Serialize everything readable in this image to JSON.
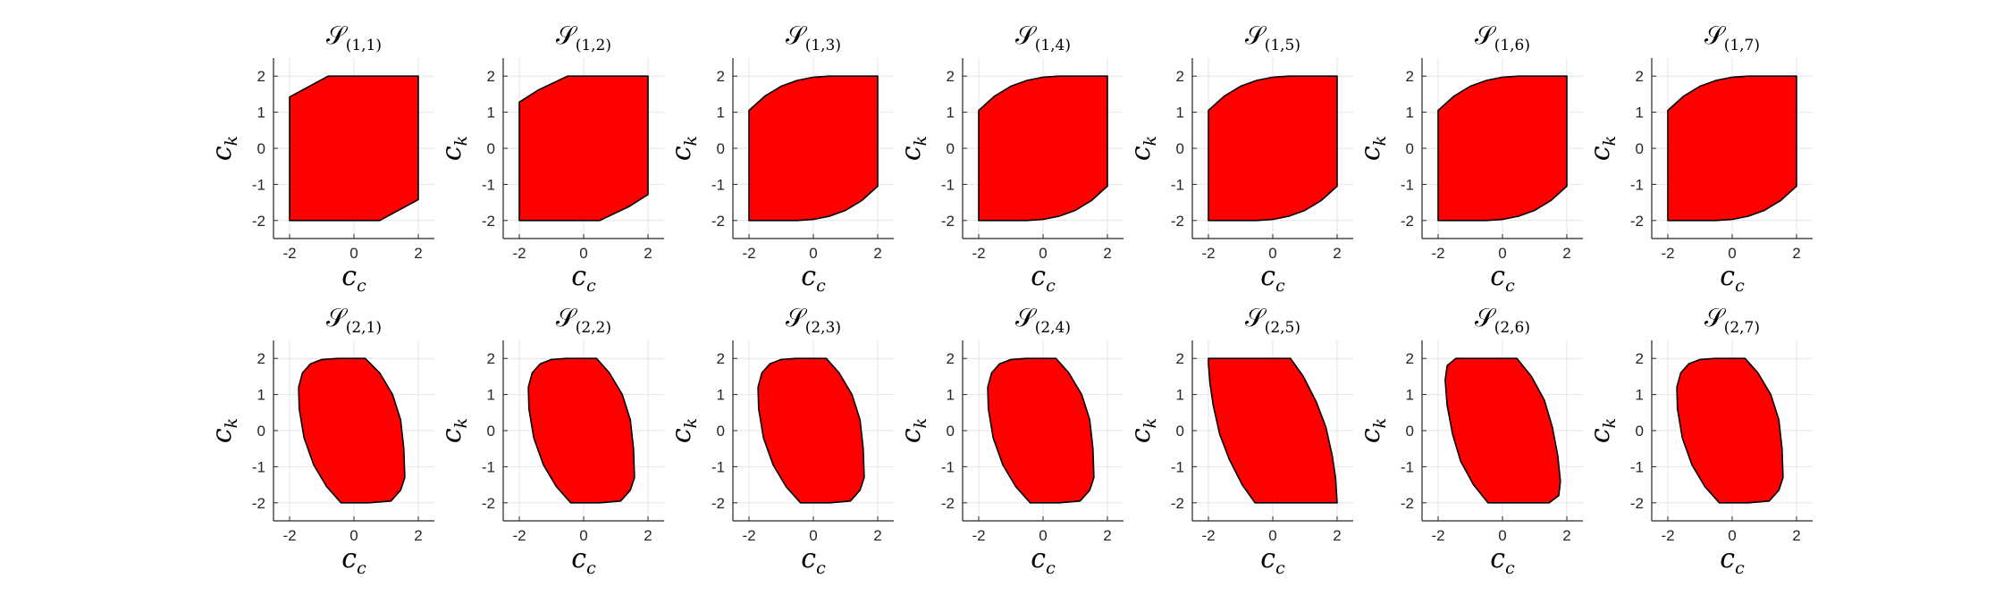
{
  "colors": {
    "fill": "#ff0000",
    "edge": "#000000",
    "grid": "#e6e6e6",
    "axis": "#262626"
  },
  "chart_data": {
    "type": "area",
    "layout": {
      "rows": 2,
      "cols": 7
    },
    "xlim": [
      -2.5,
      2.5
    ],
    "ylim": [
      -2.5,
      2.5
    ],
    "xticks": [
      "-2",
      "0",
      "2"
    ],
    "yticks": [
      "2",
      "1",
      "0",
      "-1",
      "-2"
    ],
    "xtick_values": [
      -2,
      0,
      2
    ],
    "ytick_values": [
      2,
      1,
      0,
      -1,
      -2
    ],
    "grid": true,
    "xlabel": {
      "base": "c",
      "sub": "c"
    },
    "ylabel": {
      "base": "c",
      "sub": "k"
    },
    "panels": [
      {
        "title_sub": "(1,1)",
        "polygon": [
          [
            -2,
            -2
          ],
          [
            -2,
            1.42
          ],
          [
            -0.8,
            2
          ],
          [
            2,
            2
          ],
          [
            2,
            -1.42
          ],
          [
            0.8,
            -2
          ]
        ]
      },
      {
        "title_sub": "(1,2)",
        "polygon": [
          [
            -2,
            -2
          ],
          [
            -2,
            1.28
          ],
          [
            -1.4,
            1.62
          ],
          [
            -0.5,
            2
          ],
          [
            2,
            2
          ],
          [
            2,
            -1.28
          ],
          [
            1.4,
            -1.62
          ],
          [
            0.5,
            -2
          ]
        ]
      },
      {
        "title_sub": "(1,3)",
        "polygon": [
          [
            -2,
            -2
          ],
          [
            -2,
            1.05
          ],
          [
            -1.5,
            1.45
          ],
          [
            -1,
            1.72
          ],
          [
            -0.5,
            1.88
          ],
          [
            0,
            1.97
          ],
          [
            0.5,
            2
          ],
          [
            2,
            2
          ],
          [
            2,
            -1.05
          ],
          [
            1.5,
            -1.45
          ],
          [
            1,
            -1.72
          ],
          [
            0.5,
            -1.88
          ],
          [
            0,
            -1.97
          ],
          [
            -0.5,
            -2
          ]
        ]
      },
      {
        "title_sub": "(1,4)",
        "polygon": [
          [
            -2,
            -2
          ],
          [
            -2,
            1.05
          ],
          [
            -1.5,
            1.45
          ],
          [
            -1,
            1.72
          ],
          [
            -0.5,
            1.88
          ],
          [
            0,
            1.97
          ],
          [
            0.5,
            2
          ],
          [
            2,
            2
          ],
          [
            2,
            -1.05
          ],
          [
            1.5,
            -1.45
          ],
          [
            1,
            -1.72
          ],
          [
            0.5,
            -1.88
          ],
          [
            0,
            -1.97
          ],
          [
            -0.5,
            -2
          ]
        ]
      },
      {
        "title_sub": "(1,5)",
        "polygon": [
          [
            -2,
            -2
          ],
          [
            -2,
            1.05
          ],
          [
            -1.5,
            1.45
          ],
          [
            -1,
            1.72
          ],
          [
            -0.5,
            1.88
          ],
          [
            0,
            1.97
          ],
          [
            0.5,
            2
          ],
          [
            2,
            2
          ],
          [
            2,
            -1.05
          ],
          [
            1.5,
            -1.45
          ],
          [
            1,
            -1.72
          ],
          [
            0.5,
            -1.88
          ],
          [
            0,
            -1.97
          ],
          [
            -0.5,
            -2
          ]
        ]
      },
      {
        "title_sub": "(1,6)",
        "polygon": [
          [
            -2,
            -2
          ],
          [
            -2,
            1.05
          ],
          [
            -1.5,
            1.45
          ],
          [
            -1,
            1.72
          ],
          [
            -0.5,
            1.88
          ],
          [
            0,
            1.97
          ],
          [
            0.5,
            2
          ],
          [
            2,
            2
          ],
          [
            2,
            -1.05
          ],
          [
            1.5,
            -1.45
          ],
          [
            1,
            -1.72
          ],
          [
            0.5,
            -1.88
          ],
          [
            0,
            -1.97
          ],
          [
            -0.5,
            -2
          ]
        ]
      },
      {
        "title_sub": "(1,7)",
        "polygon": [
          [
            -2,
            -2
          ],
          [
            -2,
            1.05
          ],
          [
            -1.5,
            1.45
          ],
          [
            -1,
            1.72
          ],
          [
            -0.5,
            1.88
          ],
          [
            0,
            1.97
          ],
          [
            0.5,
            2
          ],
          [
            2,
            2
          ],
          [
            2,
            -1.05
          ],
          [
            1.5,
            -1.45
          ],
          [
            1,
            -1.72
          ],
          [
            0.5,
            -1.88
          ],
          [
            0,
            -1.97
          ],
          [
            -0.5,
            -2
          ]
        ]
      },
      {
        "title_sub": "(2,1)",
        "polygon": [
          [
            -0.5,
            2
          ],
          [
            0.35,
            2
          ],
          [
            0.8,
            1.6
          ],
          [
            1.2,
            1
          ],
          [
            1.45,
            0.3
          ],
          [
            1.55,
            -0.5
          ],
          [
            1.58,
            -1.3
          ],
          [
            1.45,
            -1.65
          ],
          [
            1.15,
            -1.95
          ],
          [
            0.45,
            -2
          ],
          [
            -0.4,
            -2
          ],
          [
            -0.85,
            -1.55
          ],
          [
            -1.25,
            -0.95
          ],
          [
            -1.55,
            -0.2
          ],
          [
            -1.7,
            0.6
          ],
          [
            -1.72,
            1.2
          ],
          [
            -1.6,
            1.6
          ],
          [
            -1.35,
            1.85
          ],
          [
            -1,
            1.97
          ]
        ]
      },
      {
        "title_sub": "(2,2)",
        "polygon": [
          [
            -0.55,
            2
          ],
          [
            0.4,
            2
          ],
          [
            0.8,
            1.6
          ],
          [
            1.2,
            1
          ],
          [
            1.45,
            0.3
          ],
          [
            1.55,
            -0.5
          ],
          [
            1.58,
            -1.3
          ],
          [
            1.45,
            -1.65
          ],
          [
            1.15,
            -1.95
          ],
          [
            0.5,
            -2
          ],
          [
            -0.4,
            -2
          ],
          [
            -0.85,
            -1.55
          ],
          [
            -1.25,
            -0.95
          ],
          [
            -1.55,
            -0.2
          ],
          [
            -1.7,
            0.6
          ],
          [
            -1.72,
            1.2
          ],
          [
            -1.6,
            1.6
          ],
          [
            -1.35,
            1.85
          ],
          [
            -1,
            1.97
          ]
        ]
      },
      {
        "title_sub": "(2,3)",
        "polygon": [
          [
            -0.55,
            2
          ],
          [
            0.4,
            2
          ],
          [
            0.8,
            1.6
          ],
          [
            1.2,
            1
          ],
          [
            1.45,
            0.3
          ],
          [
            1.55,
            -0.5
          ],
          [
            1.58,
            -1.3
          ],
          [
            1.45,
            -1.65
          ],
          [
            1.15,
            -1.95
          ],
          [
            0.5,
            -2
          ],
          [
            -0.4,
            -2
          ],
          [
            -0.85,
            -1.55
          ],
          [
            -1.25,
            -0.95
          ],
          [
            -1.55,
            -0.2
          ],
          [
            -1.7,
            0.6
          ],
          [
            -1.72,
            1.2
          ],
          [
            -1.6,
            1.6
          ],
          [
            -1.35,
            1.85
          ],
          [
            -1,
            1.97
          ]
        ]
      },
      {
        "title_sub": "(2,4)",
        "polygon": [
          [
            -0.55,
            2
          ],
          [
            0.4,
            2
          ],
          [
            0.8,
            1.6
          ],
          [
            1.2,
            1
          ],
          [
            1.45,
            0.3
          ],
          [
            1.55,
            -0.5
          ],
          [
            1.58,
            -1.3
          ],
          [
            1.45,
            -1.65
          ],
          [
            1.15,
            -1.95
          ],
          [
            0.5,
            -2
          ],
          [
            -0.4,
            -2
          ],
          [
            -0.85,
            -1.55
          ],
          [
            -1.25,
            -0.95
          ],
          [
            -1.55,
            -0.2
          ],
          [
            -1.7,
            0.6
          ],
          [
            -1.72,
            1.2
          ],
          [
            -1.6,
            1.6
          ],
          [
            -1.35,
            1.85
          ],
          [
            -1,
            1.97
          ]
        ]
      },
      {
        "title_sub": "(2,5)",
        "polygon": [
          [
            -2,
            2
          ],
          [
            0.55,
            2
          ],
          [
            0.95,
            1.5
          ],
          [
            1.35,
            0.8
          ],
          [
            1.65,
            0.1
          ],
          [
            1.85,
            -0.7
          ],
          [
            1.95,
            -1.3
          ],
          [
            2,
            -2
          ],
          [
            -0.55,
            -2
          ],
          [
            -0.95,
            -1.5
          ],
          [
            -1.35,
            -0.8
          ],
          [
            -1.65,
            -0.1
          ],
          [
            -1.85,
            0.7
          ],
          [
            -1.95,
            1.3
          ],
          [
            -2,
            1.85
          ]
        ]
      },
      {
        "title_sub": "(2,6)",
        "polygon": [
          [
            -1.45,
            2
          ],
          [
            0.45,
            2
          ],
          [
            0.9,
            1.5
          ],
          [
            1.3,
            0.85
          ],
          [
            1.55,
            0.1
          ],
          [
            1.72,
            -0.7
          ],
          [
            1.8,
            -1.4
          ],
          [
            1.75,
            -1.8
          ],
          [
            1.45,
            -2
          ],
          [
            -0.45,
            -2
          ],
          [
            -0.9,
            -1.5
          ],
          [
            -1.3,
            -0.85
          ],
          [
            -1.55,
            -0.1
          ],
          [
            -1.72,
            0.7
          ],
          [
            -1.78,
            1.4
          ],
          [
            -1.72,
            1.8
          ]
        ]
      },
      {
        "title_sub": "(2,7)",
        "polygon": [
          [
            -0.55,
            2
          ],
          [
            0.4,
            2
          ],
          [
            0.8,
            1.6
          ],
          [
            1.2,
            1
          ],
          [
            1.45,
            0.3
          ],
          [
            1.55,
            -0.5
          ],
          [
            1.58,
            -1.3
          ],
          [
            1.45,
            -1.65
          ],
          [
            1.15,
            -1.95
          ],
          [
            0.5,
            -2
          ],
          [
            -0.4,
            -2
          ],
          [
            -0.85,
            -1.55
          ],
          [
            -1.25,
            -0.95
          ],
          [
            -1.55,
            -0.2
          ],
          [
            -1.7,
            0.6
          ],
          [
            -1.72,
            1.2
          ],
          [
            -1.6,
            1.6
          ],
          [
            -1.35,
            1.85
          ],
          [
            -1,
            1.97
          ]
        ]
      }
    ]
  }
}
